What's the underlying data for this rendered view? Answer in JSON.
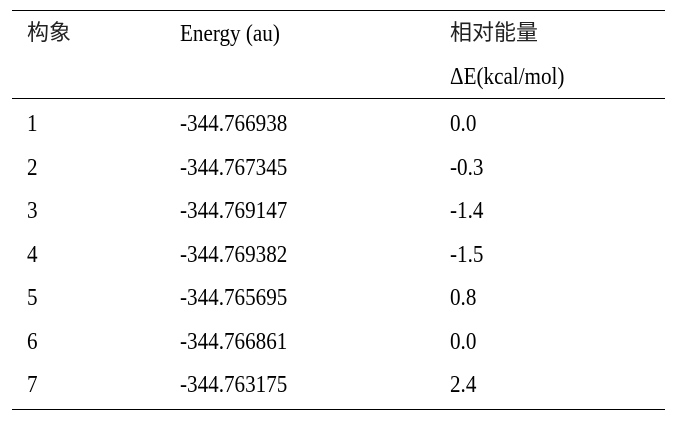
{
  "table": {
    "headers": [
      {
        "line1": "构象",
        "line2": ""
      },
      {
        "line1": "Energy (au)",
        "line2": ""
      },
      {
        "line1": "相对能量",
        "line2": "ΔE(kcal/mol)"
      }
    ],
    "rows": [
      [
        "1",
        "-344.766938",
        "0.0"
      ],
      [
        "2",
        "-344.767345",
        "-0.3"
      ],
      [
        "3",
        "-344.769147",
        "-1.4"
      ],
      [
        "4",
        "-344.769382",
        "-1.5"
      ],
      [
        "5",
        "-344.765695",
        "0.8"
      ],
      [
        "6",
        "-344.766861",
        "0.0"
      ],
      [
        "7",
        "-344.763175",
        "2.4"
      ]
    ]
  }
}
